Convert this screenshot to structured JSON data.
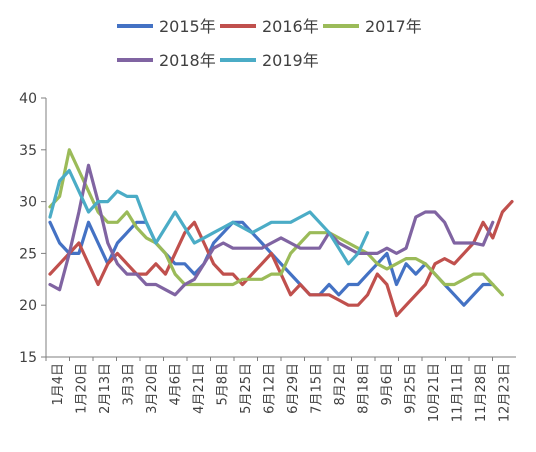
{
  "chart_data": {
    "type": "line",
    "title": "",
    "xlabel": "",
    "ylabel": "",
    "ylim": [
      15,
      40
    ],
    "yticks": [
      15,
      20,
      25,
      30,
      35,
      40
    ],
    "grid": false,
    "legend_position": "top",
    "x_tick_labels": [
      "1月4日",
      "1月20日",
      "2月13日",
      "3月3日",
      "3月20日",
      "4月6日",
      "4月21日",
      "5月8日",
      "5月25日",
      "6月12日",
      "6月29日",
      "7月15日",
      "8月2日",
      "8月18日",
      "9月6日",
      "9月25日",
      "10月21日",
      "11月11日",
      "11月28日",
      "12月23日"
    ],
    "x_count": 49,
    "series": [
      {
        "name": "2015年",
        "color": "#4472c4",
        "values": [
          28,
          26,
          25,
          25,
          28,
          26,
          24,
          26,
          27,
          28,
          28,
          26,
          25,
          24,
          24,
          23,
          24,
          26,
          27,
          28,
          28,
          27,
          26,
          25,
          24,
          23,
          22,
          21,
          21,
          22,
          21,
          22,
          22,
          23,
          24,
          25,
          22,
          24,
          23,
          24,
          23,
          22,
          21,
          20,
          21,
          22,
          22,
          null,
          null
        ]
      },
      {
        "name": "2016年",
        "color": "#c0504d",
        "values": [
          23,
          24,
          25,
          26,
          24,
          22,
          24,
          25,
          24,
          23,
          23,
          24,
          23,
          25,
          27,
          28,
          26,
          24,
          23,
          23,
          22,
          23,
          24,
          25,
          23,
          21,
          22,
          21,
          21,
          21,
          20.5,
          20,
          20,
          21,
          23,
          22,
          19,
          20,
          21,
          22,
          24,
          24.5,
          24,
          25,
          26,
          28,
          26.5,
          29,
          30
        ]
      },
      {
        "name": "2017年",
        "color": "#9bbb59",
        "values": [
          29.5,
          30.5,
          35,
          33,
          31,
          29,
          28,
          28,
          29,
          27.5,
          26.5,
          26,
          25,
          23,
          22,
          22,
          22,
          22,
          22,
          22,
          22.5,
          22.5,
          22.5,
          23,
          23,
          25,
          26,
          27,
          27,
          27,
          26.5,
          26,
          25.5,
          25,
          24,
          23.5,
          24,
          24.5,
          24.5,
          24,
          23,
          22,
          22,
          22.5,
          23,
          23,
          22,
          21,
          null
        ]
      },
      {
        "name": "2018年",
        "color": "#8064a2",
        "values": [
          22,
          21.5,
          25,
          29,
          33.5,
          30,
          26,
          24,
          23,
          23,
          22,
          22,
          21.5,
          21,
          22,
          22.5,
          24,
          25.5,
          26,
          25.5,
          25.5,
          25.5,
          25.5,
          26,
          26.5,
          26,
          25.5,
          25.5,
          25.5,
          27,
          26,
          25.5,
          25,
          25,
          25,
          25.5,
          25,
          25.5,
          28.5,
          29,
          29,
          28,
          26,
          26,
          26,
          25.8,
          28,
          null,
          null
        ]
      },
      {
        "name": "2019年",
        "color": "#4bacc6",
        "values": [
          28.5,
          32,
          33,
          31,
          29,
          30,
          30,
          31,
          30.5,
          30.5,
          28,
          26,
          27.5,
          29,
          27.5,
          26,
          26.5,
          27,
          27.5,
          28,
          27.5,
          27,
          27.5,
          28,
          28,
          28,
          28.5,
          29,
          28,
          27,
          25.5,
          24,
          25,
          27,
          null,
          null,
          null,
          null,
          null,
          null,
          null,
          null,
          null,
          null,
          null,
          null,
          null,
          null,
          null
        ]
      }
    ]
  }
}
